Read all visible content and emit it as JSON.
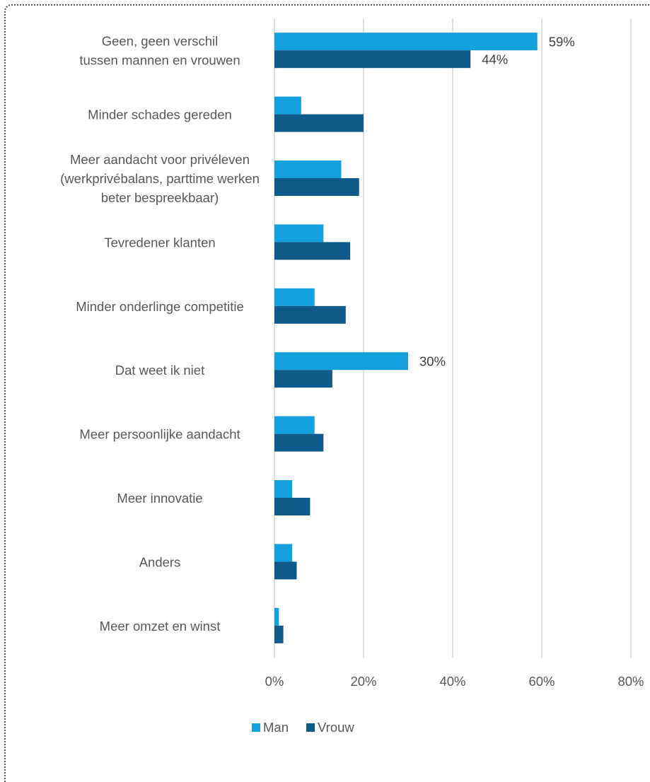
{
  "chart_data": {
    "type": "bar",
    "orientation": "horizontal",
    "categories": [
      "Geen, geen verschil\ntussen mannen en vrouwen",
      "Minder schades gereden",
      "Meer aandacht voor privéleven\n(werkprivébalans, parttime werken\nbeter bespreekbaar)",
      "Tevredener klanten",
      "Minder onderlinge competitie",
      "Dat weet ik niet",
      "Meer persoonlijke aandacht",
      "Meer innovatie",
      "Anders",
      "Meer omzet en winst"
    ],
    "series": [
      {
        "name": "Man",
        "color": "#14a0dc",
        "values": [
          59,
          6,
          15,
          11,
          9,
          30,
          9,
          4,
          4,
          1
        ]
      },
      {
        "name": "Vrouw",
        "color": "#0e5a8a",
        "values": [
          44,
          20,
          19,
          17,
          16,
          13,
          11,
          8,
          5,
          2
        ]
      }
    ],
    "data_labels": [
      {
        "series": 0,
        "index": 0,
        "text": "59%"
      },
      {
        "series": 1,
        "index": 0,
        "text": "44%"
      },
      {
        "series": 0,
        "index": 5,
        "text": "30%"
      }
    ],
    "xlim": [
      0,
      80
    ],
    "x_ticks": [
      0,
      20,
      40,
      60,
      80
    ],
    "x_tick_labels": [
      "0%",
      "20%",
      "40%",
      "60%",
      "80%"
    ],
    "grid": "vertical",
    "legend_position": "bottom",
    "title": "",
    "xlabel": "",
    "ylabel": ""
  }
}
